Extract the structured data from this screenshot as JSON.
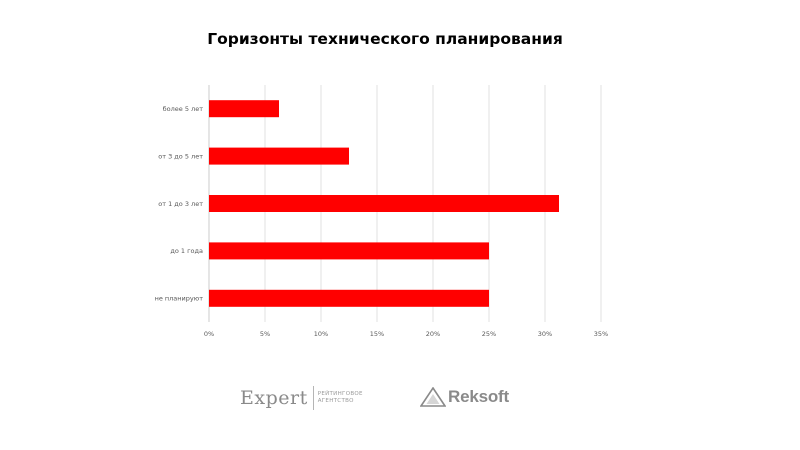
{
  "chart_data": {
    "type": "bar",
    "orientation": "horizontal",
    "title": "Горизонты технического планирования",
    "categories": [
      "более 5 лет",
      "от 3 до 5 лет",
      "от 1 до 3 лет",
      "до 1 года",
      "не планируют"
    ],
    "values": [
      6.25,
      12.5,
      31.25,
      25,
      25
    ],
    "xlim": [
      0,
      35
    ],
    "x_ticks": [
      "0%",
      "5%",
      "10%",
      "15%",
      "20%",
      "25%",
      "30%",
      "35%"
    ],
    "bar_color": "#ff0000",
    "grid": "vertical gridlines",
    "legend": "none"
  },
  "logos": {
    "expert": {
      "word": "Expert",
      "sub_line1": "РЕЙТИНГОВОЕ",
      "sub_line2": "АГЕНТСТВО"
    },
    "reksoft": {
      "word": "Reksoft"
    }
  },
  "colors": {
    "bar": "#ff0000",
    "grid": "#d9d9d9",
    "logo_gray": "#8a8a8a"
  }
}
